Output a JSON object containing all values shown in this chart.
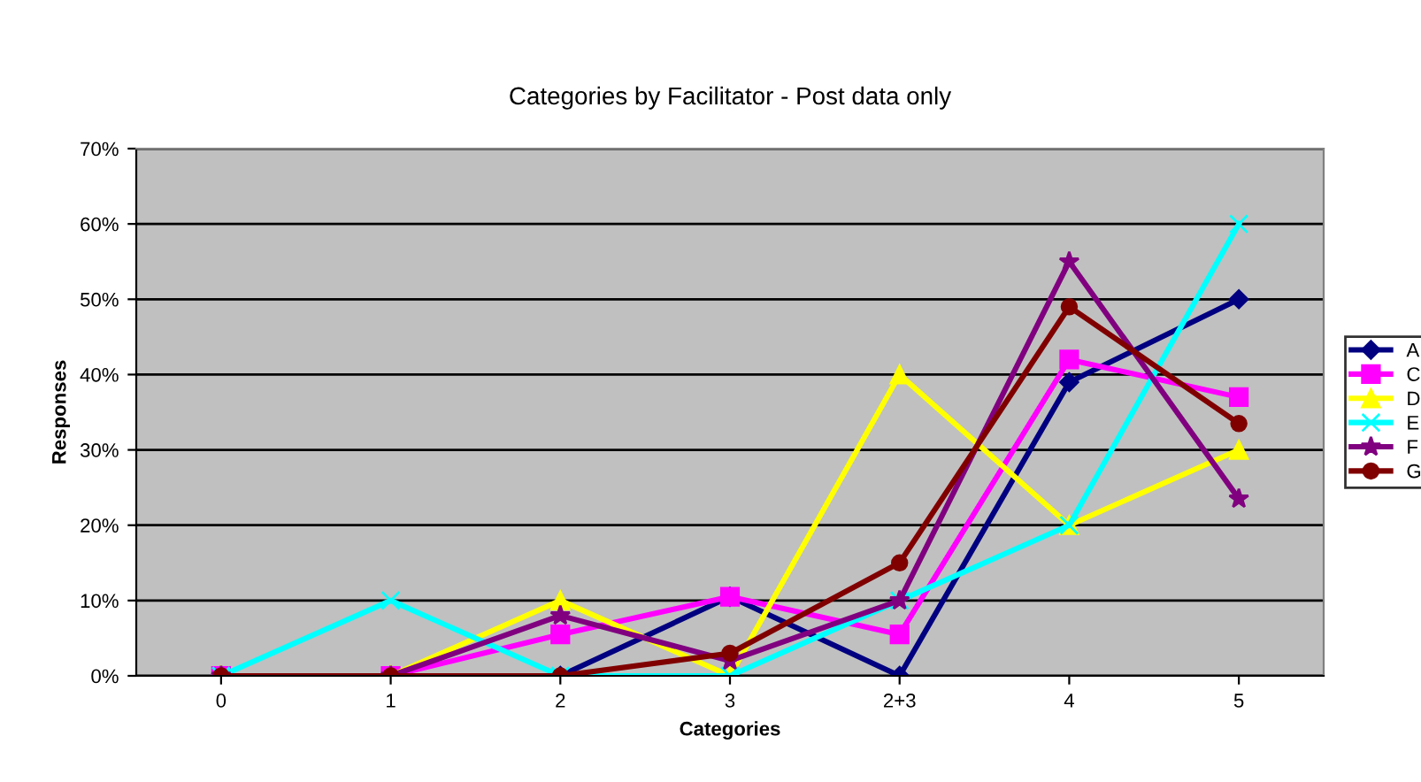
{
  "chart_data": {
    "type": "line",
    "title": "Categories by Facilitator - Post data only",
    "xlabel": "Categories",
    "ylabel": "Responses",
    "categories": [
      "0",
      "1",
      "2",
      "3",
      "2+3",
      "4",
      "5"
    ],
    "series": [
      {
        "name": "A",
        "color": "#000080",
        "marker": "diamond",
        "values": [
          0,
          0,
          0,
          10.5,
          0,
          39,
          50
        ]
      },
      {
        "name": "C",
        "color": "#ff00ff",
        "marker": "square",
        "values": [
          0,
          0,
          5.5,
          10.5,
          5.5,
          42,
          37
        ]
      },
      {
        "name": "D",
        "color": "#ffff00",
        "marker": "triangle",
        "values": [
          0,
          0,
          10,
          0,
          40,
          20,
          30
        ]
      },
      {
        "name": "E",
        "color": "#00ffff",
        "marker": "cross",
        "values": [
          0,
          10,
          0,
          0,
          10,
          20,
          60
        ]
      },
      {
        "name": "F",
        "color": "#800080",
        "marker": "star",
        "values": [
          0,
          0,
          8,
          2,
          10,
          55,
          23.5
        ]
      },
      {
        "name": "G",
        "color": "#800000",
        "marker": "circle",
        "values": [
          0,
          0,
          0,
          3,
          15,
          49,
          33.5
        ]
      }
    ],
    "ylim": [
      0,
      70
    ],
    "yticks": [
      {
        "value": 0,
        "label": "0%"
      },
      {
        "value": 10,
        "label": "10%"
      },
      {
        "value": 20,
        "label": "20%"
      },
      {
        "value": 30,
        "label": "30%"
      },
      {
        "value": 40,
        "label": "40%"
      },
      {
        "value": 50,
        "label": "50%"
      },
      {
        "value": 60,
        "label": "60%"
      },
      {
        "value": 70,
        "label": "70%"
      }
    ],
    "grid": "y",
    "legend": "right",
    "line_style": "solid"
  }
}
